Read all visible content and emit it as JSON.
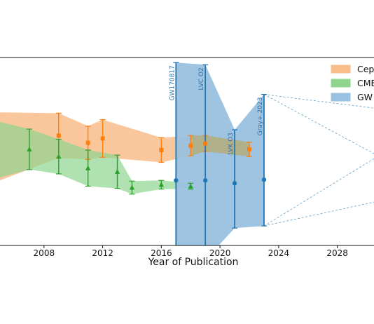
{
  "chart_data": {
    "type": "scatter",
    "title": "",
    "xlabel": "Year of Publication",
    "ylabel": "",
    "xlim": [
      2005,
      2030.5
    ],
    "ylim": [
      -130,
      130
    ],
    "xticks": [
      2008,
      2012,
      2016,
      2020,
      2024,
      2028
    ],
    "xtick_labels": [
      "2008",
      "2012",
      "2016",
      "2020",
      "2024",
      "2028"
    ],
    "grid": false,
    "legend_position": "top-right",
    "colors": {
      "cepheid_fill": "#f9bd8c",
      "cepheid_marker": "#ff7f0e",
      "cmb_fill": "#8fd48f",
      "cmb_marker": "#2ca02c",
      "gw_fill": "#9ac1df",
      "gw_marker": "#1f77b4",
      "overlap_fill": "#b3ad7c"
    },
    "legend": [
      {
        "key": "cepheid",
        "label": "Ceph"
      },
      {
        "key": "cmb",
        "label": "CMB"
      },
      {
        "key": "gw",
        "label": "GW"
      }
    ],
    "series": [
      {
        "key": "cepheid",
        "marker": "square",
        "points": [
          {
            "x": 2009,
            "y": 22,
            "err": 31
          },
          {
            "x": 2011,
            "y": 12,
            "err": 23
          },
          {
            "x": 2012,
            "y": 18,
            "err": 26
          },
          {
            "x": 2016,
            "y": 2,
            "err": 17
          },
          {
            "x": 2018,
            "y": 8,
            "err": 14
          },
          {
            "x": 2019,
            "y": 11,
            "err": 11
          },
          {
            "x": 2022,
            "y": 3,
            "err": 10
          }
        ],
        "band_left": {
          "x": 2005,
          "y_low": -40,
          "y_high": 54
        }
      },
      {
        "key": "cmb",
        "marker": "triangle",
        "points": [
          {
            "x": 2007,
            "y": 3,
            "err": 28
          },
          {
            "x": 2009,
            "y": -7,
            "err": 24
          },
          {
            "x": 2011,
            "y": -23,
            "err": 25
          },
          {
            "x": 2013,
            "y": -28,
            "err": 23
          },
          {
            "x": 2014,
            "y": -50,
            "err": 9
          },
          {
            "x": 2016,
            "y": -46,
            "err": 6
          },
          {
            "x": 2018,
            "y": -48,
            "err": 4
          }
        ],
        "band_left": {
          "x": 2005,
          "y_low": -36,
          "y_high": 41
        }
      },
      {
        "key": "gw",
        "marker": "circle",
        "points": [
          {
            "x": 2017,
            "y": -40,
            "y_low": -152,
            "y_high": 123,
            "label": "GW170817"
          },
          {
            "x": 2019,
            "y": -40,
            "y_low": -150,
            "y_high": 120,
            "label": "LVC O2"
          },
          {
            "x": 2021,
            "y": -44,
            "y_low": -106,
            "y_high": 30,
            "label": "LVK O3"
          },
          {
            "x": 2023,
            "y": -39,
            "y_low": -103,
            "y_high": 79,
            "label": "Gray+ 2023"
          }
        ],
        "projection_end_x": 2030.5,
        "projection_upper": [
          60,
          -3
        ],
        "projection_lower": [
          -10,
          -70
        ]
      }
    ]
  }
}
